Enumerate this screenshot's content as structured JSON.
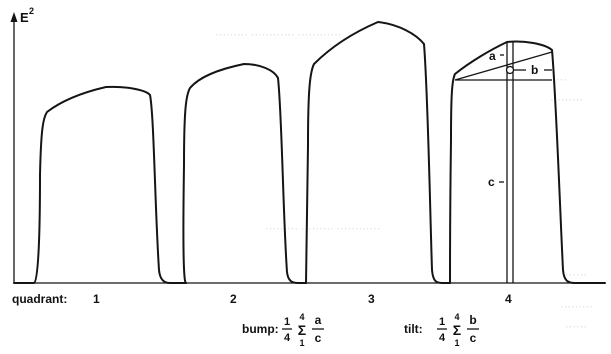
{
  "axis": {
    "y_label": "E",
    "y_exponent": "2"
  },
  "quadrant_row": {
    "title": "quadrant:",
    "labels": [
      "1",
      "2",
      "3",
      "4"
    ]
  },
  "annotations": {
    "a": "a",
    "b": "b",
    "c": "c"
  },
  "formulas": {
    "bump": {
      "name": "bump:",
      "frac_num": "1",
      "frac_den": "4",
      "sum_top": "4",
      "sum_sym": "Σ",
      "sum_bottom": "1",
      "ratio_num": "a",
      "ratio_den": "c"
    },
    "tilt": {
      "name": "tilt:",
      "frac_num": "1",
      "frac_den": "4",
      "sum_top": "4",
      "sum_sym": "Σ",
      "sum_bottom": "1",
      "ratio_num": "b",
      "ratio_den": "c"
    }
  }
}
